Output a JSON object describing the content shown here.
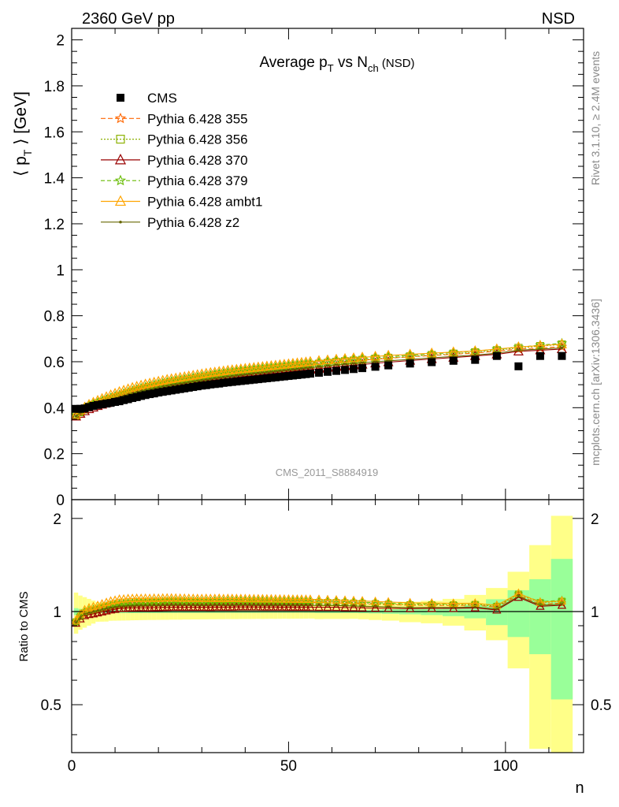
{
  "header": {
    "left": "2360 GeV pp",
    "right": "NSD"
  },
  "side_labels": {
    "rivet": "Rivet 3.1.10, ≥ 2.4M events",
    "mcplots": "mcplots.cern.ch [arXiv:1306.3436]"
  },
  "watermark": "CMS_2011_S8884919",
  "chart_data": {
    "type": "scatter",
    "title": {
      "main": "Average p",
      "sub1": "T",
      "mid": " vs N",
      "sub2": "ch",
      "tail": " (NSD)"
    },
    "ylabel": {
      "pre": "⟨ p",
      "sub": "T",
      "post": " ⟩ [GeV]"
    },
    "ratio_ylabel": "Ratio to CMS",
    "xlabel": "n",
    "xlim": [
      0,
      118
    ],
    "ylim": [
      0,
      2.05
    ],
    "ratio_ylim": [
      0.35,
      2.3
    ],
    "ratio_scale": "log",
    "x_ticks": [
      "0",
      "50",
      "100"
    ],
    "y_ticks": [
      "0",
      "0.2",
      "0.4",
      "0.6",
      "0.8",
      "1",
      "1.2",
      "1.4",
      "1.6",
      "1.8",
      "2"
    ],
    "ratio_ticks": [
      "0.5",
      "1",
      "2"
    ],
    "legend_position": "top-left",
    "series": [
      {
        "name": "CMS",
        "color": "#000000",
        "marker": "square",
        "x": [
          1,
          2,
          3,
          4,
          5,
          6,
          7,
          8,
          9,
          10,
          11,
          12,
          13,
          14,
          15,
          16,
          17,
          18,
          19,
          20,
          21,
          22,
          23,
          24,
          25,
          26,
          27,
          28,
          29,
          30,
          31,
          32,
          33,
          34,
          35,
          36,
          37,
          38,
          39,
          40,
          41,
          42,
          43,
          44,
          45,
          46,
          47,
          48,
          49,
          50,
          51,
          52,
          53,
          54,
          55,
          57,
          59,
          61,
          63,
          65,
          67,
          70,
          73,
          78,
          83,
          88,
          93,
          98,
          103,
          108,
          113
        ],
        "y": [
          0.395,
          0.395,
          0.397,
          0.403,
          0.408,
          0.412,
          0.415,
          0.418,
          0.421,
          0.425,
          0.428,
          0.433,
          0.437,
          0.442,
          0.446,
          0.451,
          0.455,
          0.459,
          0.462,
          0.466,
          0.469,
          0.472,
          0.475,
          0.478,
          0.481,
          0.484,
          0.487,
          0.49,
          0.493,
          0.496,
          0.498,
          0.501,
          0.503,
          0.505,
          0.508,
          0.51,
          0.512,
          0.514,
          0.516,
          0.518,
          0.52,
          0.522,
          0.524,
          0.526,
          0.528,
          0.53,
          0.532,
          0.534,
          0.536,
          0.538,
          0.54,
          0.542,
          0.544,
          0.546,
          0.548,
          0.552,
          0.556,
          0.56,
          0.564,
          0.568,
          0.572,
          0.578,
          0.584,
          0.592,
          0.598,
          0.604,
          0.608,
          0.625,
          0.58,
          0.625,
          0.625
        ],
        "stat_err": [
          0.01,
          0.008,
          0.007,
          0.006,
          0.006,
          0.005,
          0.005,
          0.005,
          0.005,
          0.005,
          0.005,
          0.005,
          0.005,
          0.005,
          0.005,
          0.005,
          0.005,
          0.005,
          0.005,
          0.005,
          0.005,
          0.005,
          0.005,
          0.005,
          0.005,
          0.005,
          0.005,
          0.005,
          0.005,
          0.005,
          0.005,
          0.005,
          0.005,
          0.005,
          0.005,
          0.005,
          0.005,
          0.005,
          0.005,
          0.005,
          0.005,
          0.005,
          0.005,
          0.005,
          0.005,
          0.005,
          0.005,
          0.005,
          0.005,
          0.005,
          0.005,
          0.005,
          0.005,
          0.005,
          0.005,
          0.006,
          0.006,
          0.006,
          0.006,
          0.006,
          0.007,
          0.008,
          0.01,
          0.012,
          0.015,
          0.02,
          0.03,
          0.06,
          0.1,
          0.17,
          0.3
        ],
        "total_err": [
          0.06,
          0.05,
          0.045,
          0.04,
          0.035,
          0.03,
          0.03,
          0.03,
          0.028,
          0.028,
          0.028,
          0.028,
          0.028,
          0.028,
          0.028,
          0.028,
          0.028,
          0.028,
          0.028,
          0.028,
          0.028,
          0.028,
          0.028,
          0.028,
          0.028,
          0.028,
          0.028,
          0.028,
          0.028,
          0.028,
          0.028,
          0.028,
          0.028,
          0.028,
          0.028,
          0.028,
          0.028,
          0.028,
          0.028,
          0.028,
          0.028,
          0.028,
          0.028,
          0.028,
          0.028,
          0.028,
          0.028,
          0.028,
          0.028,
          0.028,
          0.028,
          0.028,
          0.028,
          0.028,
          0.028,
          0.03,
          0.03,
          0.03,
          0.03,
          0.03,
          0.032,
          0.035,
          0.038,
          0.045,
          0.05,
          0.06,
          0.08,
          0.12,
          0.2,
          0.4,
          0.65
        ]
      },
      {
        "name": "Pythia 6.428 355",
        "color": "#ff6600",
        "marker": "star",
        "dash": "6,3",
        "y": [
          0.365,
          0.38,
          0.392,
          0.403,
          0.41,
          0.417,
          0.423,
          0.43,
          0.436,
          0.443,
          0.449,
          0.455,
          0.461,
          0.467,
          0.473,
          0.478,
          0.483,
          0.488,
          0.492,
          0.496,
          0.5,
          0.504,
          0.508,
          0.511,
          0.514,
          0.517,
          0.52,
          0.523,
          0.526,
          0.529,
          0.532,
          0.535,
          0.538,
          0.541,
          0.543,
          0.546,
          0.548,
          0.551,
          0.553,
          0.555,
          0.557,
          0.559,
          0.561,
          0.563,
          0.565,
          0.567,
          0.569,
          0.571,
          0.573,
          0.575,
          0.577,
          0.579,
          0.581,
          0.583,
          0.585,
          0.589,
          0.593,
          0.597,
          0.6,
          0.603,
          0.606,
          0.611,
          0.615,
          0.621,
          0.627,
          0.632,
          0.638,
          0.646,
          0.655,
          0.66,
          0.665
        ]
      },
      {
        "name": "Pythia 6.428 356",
        "color": "#8ab000",
        "marker": "open-square",
        "dash": "2,2",
        "y": [
          0.366,
          0.381,
          0.393,
          0.404,
          0.412,
          0.419,
          0.425,
          0.432,
          0.438,
          0.445,
          0.451,
          0.457,
          0.463,
          0.469,
          0.475,
          0.48,
          0.485,
          0.49,
          0.494,
          0.498,
          0.502,
          0.506,
          0.51,
          0.513,
          0.516,
          0.519,
          0.522,
          0.525,
          0.528,
          0.531,
          0.534,
          0.537,
          0.54,
          0.543,
          0.545,
          0.548,
          0.55,
          0.553,
          0.555,
          0.557,
          0.559,
          0.561,
          0.563,
          0.565,
          0.567,
          0.569,
          0.571,
          0.573,
          0.575,
          0.577,
          0.579,
          0.581,
          0.583,
          0.585,
          0.587,
          0.591,
          0.595,
          0.599,
          0.602,
          0.605,
          0.608,
          0.613,
          0.617,
          0.623,
          0.629,
          0.635,
          0.641,
          0.65,
          0.66,
          0.668,
          0.675
        ]
      },
      {
        "name": "Pythia 6.428 370",
        "color": "#990000",
        "marker": "open-triangle",
        "y": [
          0.362,
          0.374,
          0.385,
          0.394,
          0.401,
          0.408,
          0.414,
          0.42,
          0.426,
          0.432,
          0.438,
          0.443,
          0.449,
          0.454,
          0.459,
          0.464,
          0.468,
          0.472,
          0.476,
          0.48,
          0.484,
          0.487,
          0.491,
          0.494,
          0.497,
          0.5,
          0.503,
          0.506,
          0.509,
          0.512,
          0.514,
          0.517,
          0.52,
          0.522,
          0.525,
          0.527,
          0.529,
          0.532,
          0.534,
          0.536,
          0.538,
          0.54,
          0.542,
          0.544,
          0.546,
          0.548,
          0.55,
          0.552,
          0.554,
          0.556,
          0.558,
          0.56,
          0.562,
          0.564,
          0.566,
          0.57,
          0.574,
          0.578,
          0.581,
          0.585,
          0.588,
          0.593,
          0.598,
          0.605,
          0.612,
          0.618,
          0.625,
          0.632,
          0.645,
          0.65,
          0.655
        ]
      },
      {
        "name": "Pythia 6.428 379",
        "color": "#66bb00",
        "marker": "star",
        "dash": "5,3",
        "y": [
          0.367,
          0.383,
          0.396,
          0.407,
          0.415,
          0.422,
          0.429,
          0.436,
          0.443,
          0.45,
          0.456,
          0.462,
          0.468,
          0.474,
          0.48,
          0.485,
          0.49,
          0.495,
          0.499,
          0.503,
          0.507,
          0.511,
          0.515,
          0.518,
          0.521,
          0.524,
          0.527,
          0.53,
          0.533,
          0.536,
          0.539,
          0.542,
          0.545,
          0.548,
          0.55,
          0.553,
          0.555,
          0.558,
          0.56,
          0.562,
          0.564,
          0.566,
          0.568,
          0.57,
          0.572,
          0.574,
          0.576,
          0.578,
          0.58,
          0.582,
          0.584,
          0.586,
          0.588,
          0.59,
          0.592,
          0.596,
          0.6,
          0.604,
          0.607,
          0.61,
          0.613,
          0.618,
          0.622,
          0.628,
          0.634,
          0.64,
          0.646,
          0.654,
          0.663,
          0.672,
          0.68
        ]
      },
      {
        "name": "Pythia 6.428 ambt1",
        "color": "#ffa500",
        "marker": "open-triangle",
        "y": [
          0.37,
          0.388,
          0.402,
          0.414,
          0.423,
          0.431,
          0.439,
          0.447,
          0.455,
          0.462,
          0.469,
          0.475,
          0.481,
          0.487,
          0.492,
          0.497,
          0.502,
          0.506,
          0.51,
          0.514,
          0.518,
          0.522,
          0.525,
          0.528,
          0.531,
          0.534,
          0.537,
          0.54,
          0.543,
          0.546,
          0.549,
          0.552,
          0.554,
          0.557,
          0.559,
          0.562,
          0.564,
          0.566,
          0.568,
          0.57,
          0.572,
          0.574,
          0.576,
          0.578,
          0.58,
          0.582,
          0.584,
          0.586,
          0.588,
          0.59,
          0.592,
          0.594,
          0.596,
          0.598,
          0.6,
          0.604,
          0.607,
          0.61,
          0.613,
          0.616,
          0.619,
          0.623,
          0.627,
          0.632,
          0.637,
          0.642,
          0.647,
          0.655,
          0.664,
          0.67,
          0.676
        ]
      },
      {
        "name": "Pythia 6.428 z2",
        "color": "#666600",
        "marker": "dot",
        "y": [
          0.364,
          0.378,
          0.39,
          0.4,
          0.408,
          0.415,
          0.421,
          0.428,
          0.434,
          0.44,
          0.446,
          0.451,
          0.457,
          0.462,
          0.467,
          0.472,
          0.476,
          0.48,
          0.484,
          0.488,
          0.492,
          0.495,
          0.499,
          0.502,
          0.505,
          0.508,
          0.511,
          0.514,
          0.517,
          0.52,
          0.522,
          0.525,
          0.528,
          0.53,
          0.533,
          0.535,
          0.537,
          0.54,
          0.542,
          0.544,
          0.546,
          0.548,
          0.55,
          0.552,
          0.554,
          0.556,
          0.558,
          0.56,
          0.562,
          0.564,
          0.566,
          0.568,
          0.57,
          0.572,
          0.574,
          0.578,
          0.582,
          0.586,
          0.589,
          0.592,
          0.595,
          0.6,
          0.604,
          0.61,
          0.617,
          0.623,
          0.629,
          0.637,
          0.65,
          0.655,
          0.66
        ]
      }
    ]
  }
}
